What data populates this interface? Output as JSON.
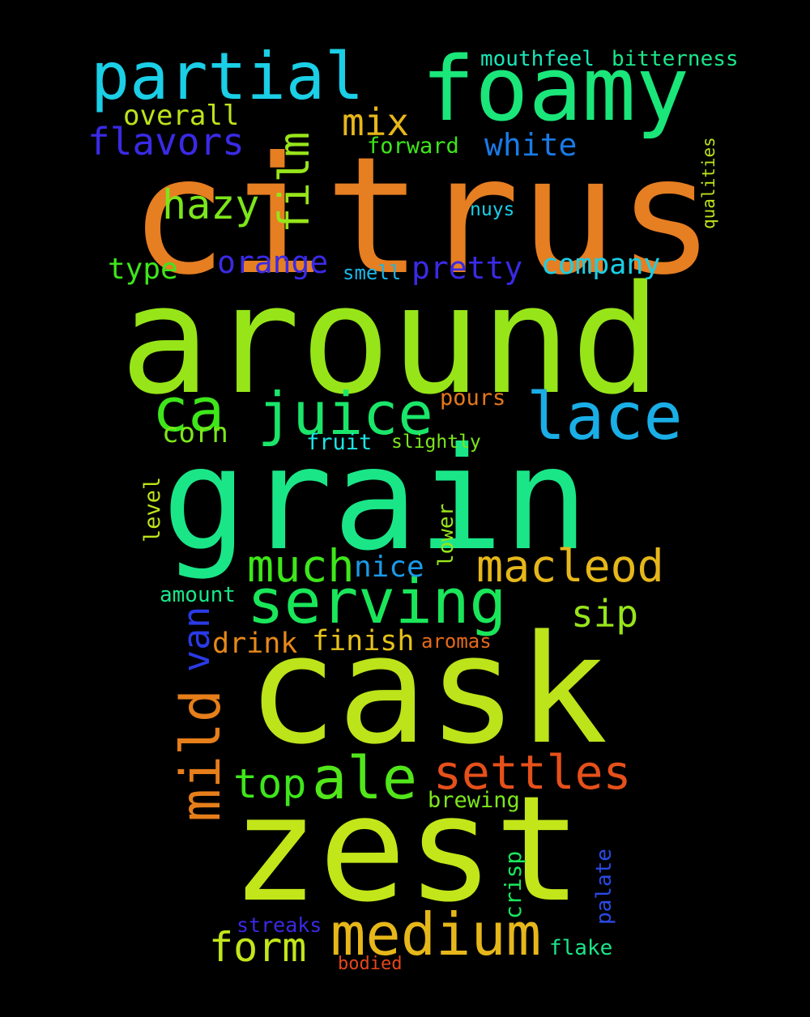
{
  "background": "#000000",
  "words": [
    {
      "text": "citrus",
      "color": "#e67e22",
      "weight": 1.0
    },
    {
      "text": "around",
      "color": "#97e519",
      "weight": 1.0
    },
    {
      "text": "grain",
      "color": "#1ae688",
      "weight": 0.98
    },
    {
      "text": "cask",
      "color": "#bde31a",
      "weight": 0.9
    },
    {
      "text": "zest",
      "color": "#c2e61a",
      "weight": 0.9
    },
    {
      "text": "foamy",
      "color": "#1ae67a",
      "weight": 0.55
    },
    {
      "text": "partial",
      "color": "#1acfe6",
      "weight": 0.45
    },
    {
      "text": "lace",
      "color": "#1aaee6",
      "weight": 0.45
    },
    {
      "text": "juice",
      "color": "#1ae66a",
      "weight": 0.42
    },
    {
      "text": "serving",
      "color": "#1ae65a",
      "weight": 0.42
    },
    {
      "text": "medium",
      "color": "#e6b71a",
      "weight": 0.42
    },
    {
      "text": "ca",
      "color": "#3ee61a",
      "weight": 0.4
    },
    {
      "text": "ale",
      "color": "#52e61a",
      "weight": 0.4
    },
    {
      "text": "mild",
      "color": "#e67e1a",
      "weight": 0.38
    },
    {
      "text": "settles",
      "color": "#e6501a",
      "weight": 0.35
    },
    {
      "text": "much",
      "color": "#3ee61a",
      "weight": 0.3
    },
    {
      "text": "macleod",
      "color": "#e6b71a",
      "weight": 0.3
    },
    {
      "text": "film",
      "color": "#97e51a",
      "weight": 0.3
    },
    {
      "text": "form",
      "color": "#c2e61a",
      "weight": 0.28
    },
    {
      "text": "top",
      "color": "#3ee61a",
      "weight": 0.28
    },
    {
      "text": "hazy",
      "color": "#7ce61a",
      "weight": 0.26
    },
    {
      "text": "van",
      "color": "#2a3ae6",
      "weight": 0.26
    },
    {
      "text": "flavors",
      "color": "#3a2ae6",
      "weight": 0.24
    },
    {
      "text": "mix",
      "color": "#e6b71a",
      "weight": 0.24
    },
    {
      "text": "sip",
      "color": "#97e51a",
      "weight": 0.24
    },
    {
      "text": "orange",
      "color": "#3a2ae6",
      "weight": 0.2
    },
    {
      "text": "pretty",
      "color": "#3a2ae6",
      "weight": 0.2
    },
    {
      "text": "white",
      "color": "#1a7ae6",
      "weight": 0.2
    },
    {
      "text": "nice",
      "color": "#1a9ae6",
      "weight": 0.18
    },
    {
      "text": "company",
      "color": "#1acfe6",
      "weight": 0.18
    },
    {
      "text": "type",
      "color": "#3ee61a",
      "weight": 0.18
    },
    {
      "text": "drink",
      "color": "#e6881a",
      "weight": 0.18
    },
    {
      "text": "finish",
      "color": "#e6c21a",
      "weight": 0.18
    },
    {
      "text": "overall",
      "color": "#bde31a",
      "weight": 0.16
    },
    {
      "text": "corn",
      "color": "#7ce61a",
      "weight": 0.16
    },
    {
      "text": "mouthfeel",
      "color": "#1ae6b7",
      "weight": 0.12
    },
    {
      "text": "bitterness",
      "color": "#1ae68a",
      "weight": 0.12
    },
    {
      "text": "forward",
      "color": "#3ee61a",
      "weight": 0.12
    },
    {
      "text": "pours",
      "color": "#e6781a",
      "weight": 0.12
    },
    {
      "text": "fruit",
      "color": "#1ae6e6",
      "weight": 0.12
    },
    {
      "text": "crisp",
      "color": "#1ae65a",
      "weight": 0.12
    },
    {
      "text": "brewing",
      "color": "#7ce61a",
      "weight": 0.12
    },
    {
      "text": "level",
      "color": "#bde31a",
      "weight": 0.11
    },
    {
      "text": "lower",
      "color": "#97e51a",
      "weight": 0.11
    },
    {
      "text": "palate",
      "color": "#2a4ae6",
      "weight": 0.11
    },
    {
      "text": "streaks",
      "color": "#3a2ae6",
      "weight": 0.11
    },
    {
      "text": "flake",
      "color": "#1ae688",
      "weight": 0.11
    },
    {
      "text": "amount",
      "color": "#1ae688",
      "weight": 0.1
    },
    {
      "text": "aromas",
      "color": "#e66a1a",
      "weight": 0.1
    },
    {
      "text": "smell",
      "color": "#1ab7e6",
      "weight": 0.1
    },
    {
      "text": "slightly",
      "color": "#7ce61a",
      "weight": 0.1
    },
    {
      "text": "nuys",
      "color": "#1acfe6",
      "weight": 0.1
    },
    {
      "text": "qualities",
      "color": "#bde31a",
      "weight": 0.09
    },
    {
      "text": "bodied",
      "color": "#e6461a",
      "weight": 0.09
    }
  ]
}
